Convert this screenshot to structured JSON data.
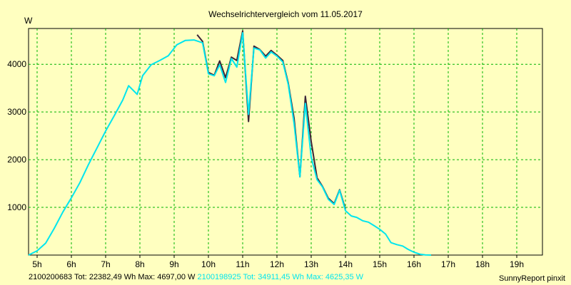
{
  "chart_data": {
    "type": "line",
    "title": "Wechselrichtervergleich vom 11.05.2017",
    "ylabel": "W",
    "xlim": [
      4.75,
      19.75
    ],
    "ylim": [
      0,
      4750
    ],
    "grid": true,
    "x_ticks": [
      5,
      6,
      7,
      8,
      9,
      10,
      11,
      12,
      13,
      14,
      15,
      16,
      17,
      18,
      19
    ],
    "x_tick_labels": [
      "5h",
      "6h",
      "7h",
      "8h",
      "9h",
      "10h",
      "11h",
      "12h",
      "13h",
      "14h",
      "15h",
      "16h",
      "17h",
      "18h",
      "19h"
    ],
    "y_ticks": [
      1000,
      2000,
      3000,
      4000
    ],
    "y_tick_labels": [
      "1000",
      "2000",
      "3000",
      "4000"
    ],
    "series": [
      {
        "name": "2100200683",
        "color": "#3c2438",
        "points": [
          [
            9.67,
            4620
          ],
          [
            9.83,
            4480
          ],
          [
            10.0,
            3830
          ],
          [
            10.17,
            3770
          ],
          [
            10.33,
            4070
          ],
          [
            10.5,
            3720
          ],
          [
            10.67,
            4150
          ],
          [
            10.83,
            4080
          ],
          [
            11.0,
            4700
          ],
          [
            11.17,
            2800
          ],
          [
            11.33,
            4380
          ],
          [
            11.5,
            4310
          ],
          [
            11.67,
            4170
          ],
          [
            11.83,
            4290
          ],
          [
            12.0,
            4190
          ],
          [
            12.17,
            4080
          ],
          [
            12.33,
            3610
          ],
          [
            12.5,
            2870
          ],
          [
            12.67,
            1640
          ],
          [
            12.83,
            3330
          ],
          [
            13.0,
            2380
          ],
          [
            13.17,
            1620
          ],
          [
            13.33,
            1440
          ],
          [
            13.5,
            1190
          ],
          [
            13.67,
            1080
          ],
          [
            13.83,
            1370
          ],
          [
            14.0,
            960
          ]
        ]
      },
      {
        "name": "2100198925",
        "color": "#00e5ee",
        "points": [
          [
            4.75,
            0
          ],
          [
            5.0,
            90
          ],
          [
            5.25,
            250
          ],
          [
            5.5,
            560
          ],
          [
            5.75,
            900
          ],
          [
            6.0,
            1200
          ],
          [
            6.25,
            1520
          ],
          [
            6.5,
            1900
          ],
          [
            6.75,
            2250
          ],
          [
            7.0,
            2600
          ],
          [
            7.25,
            2920
          ],
          [
            7.5,
            3250
          ],
          [
            7.67,
            3550
          ],
          [
            7.92,
            3370
          ],
          [
            8.08,
            3760
          ],
          [
            8.33,
            3990
          ],
          [
            8.58,
            4080
          ],
          [
            8.83,
            4180
          ],
          [
            9.08,
            4410
          ],
          [
            9.33,
            4500
          ],
          [
            9.58,
            4510
          ],
          [
            9.83,
            4450
          ],
          [
            10.0,
            3800
          ],
          [
            10.17,
            3760
          ],
          [
            10.33,
            3990
          ],
          [
            10.5,
            3620
          ],
          [
            10.67,
            4120
          ],
          [
            10.83,
            3940
          ],
          [
            11.0,
            4660
          ],
          [
            11.17,
            2950
          ],
          [
            11.33,
            4340
          ],
          [
            11.5,
            4300
          ],
          [
            11.67,
            4130
          ],
          [
            11.83,
            4260
          ],
          [
            12.0,
            4170
          ],
          [
            12.17,
            4050
          ],
          [
            12.33,
            3580
          ],
          [
            12.5,
            2760
          ],
          [
            12.67,
            1640
          ],
          [
            12.83,
            3180
          ],
          [
            13.0,
            2050
          ],
          [
            13.17,
            1580
          ],
          [
            13.33,
            1430
          ],
          [
            13.5,
            1170
          ],
          [
            13.67,
            1060
          ],
          [
            13.83,
            1360
          ],
          [
            14.0,
            930
          ],
          [
            14.17,
            820
          ],
          [
            14.33,
            790
          ],
          [
            14.5,
            720
          ],
          [
            14.67,
            690
          ],
          [
            14.83,
            620
          ],
          [
            15.0,
            540
          ],
          [
            15.17,
            440
          ],
          [
            15.33,
            260
          ],
          [
            15.5,
            220
          ],
          [
            15.67,
            190
          ],
          [
            15.83,
            120
          ],
          [
            16.0,
            60
          ],
          [
            16.17,
            20
          ],
          [
            16.33,
            5
          ],
          [
            16.5,
            0
          ]
        ]
      }
    ],
    "footer": {
      "s1_text": "2100200683 Tot: 22382,49 Wh Max: 4697,00 W",
      "s2_text": "2100198925 Tot: 34911,45 Wh Max: 4625,35 W",
      "credit": "SunnyReport pinxit"
    }
  }
}
